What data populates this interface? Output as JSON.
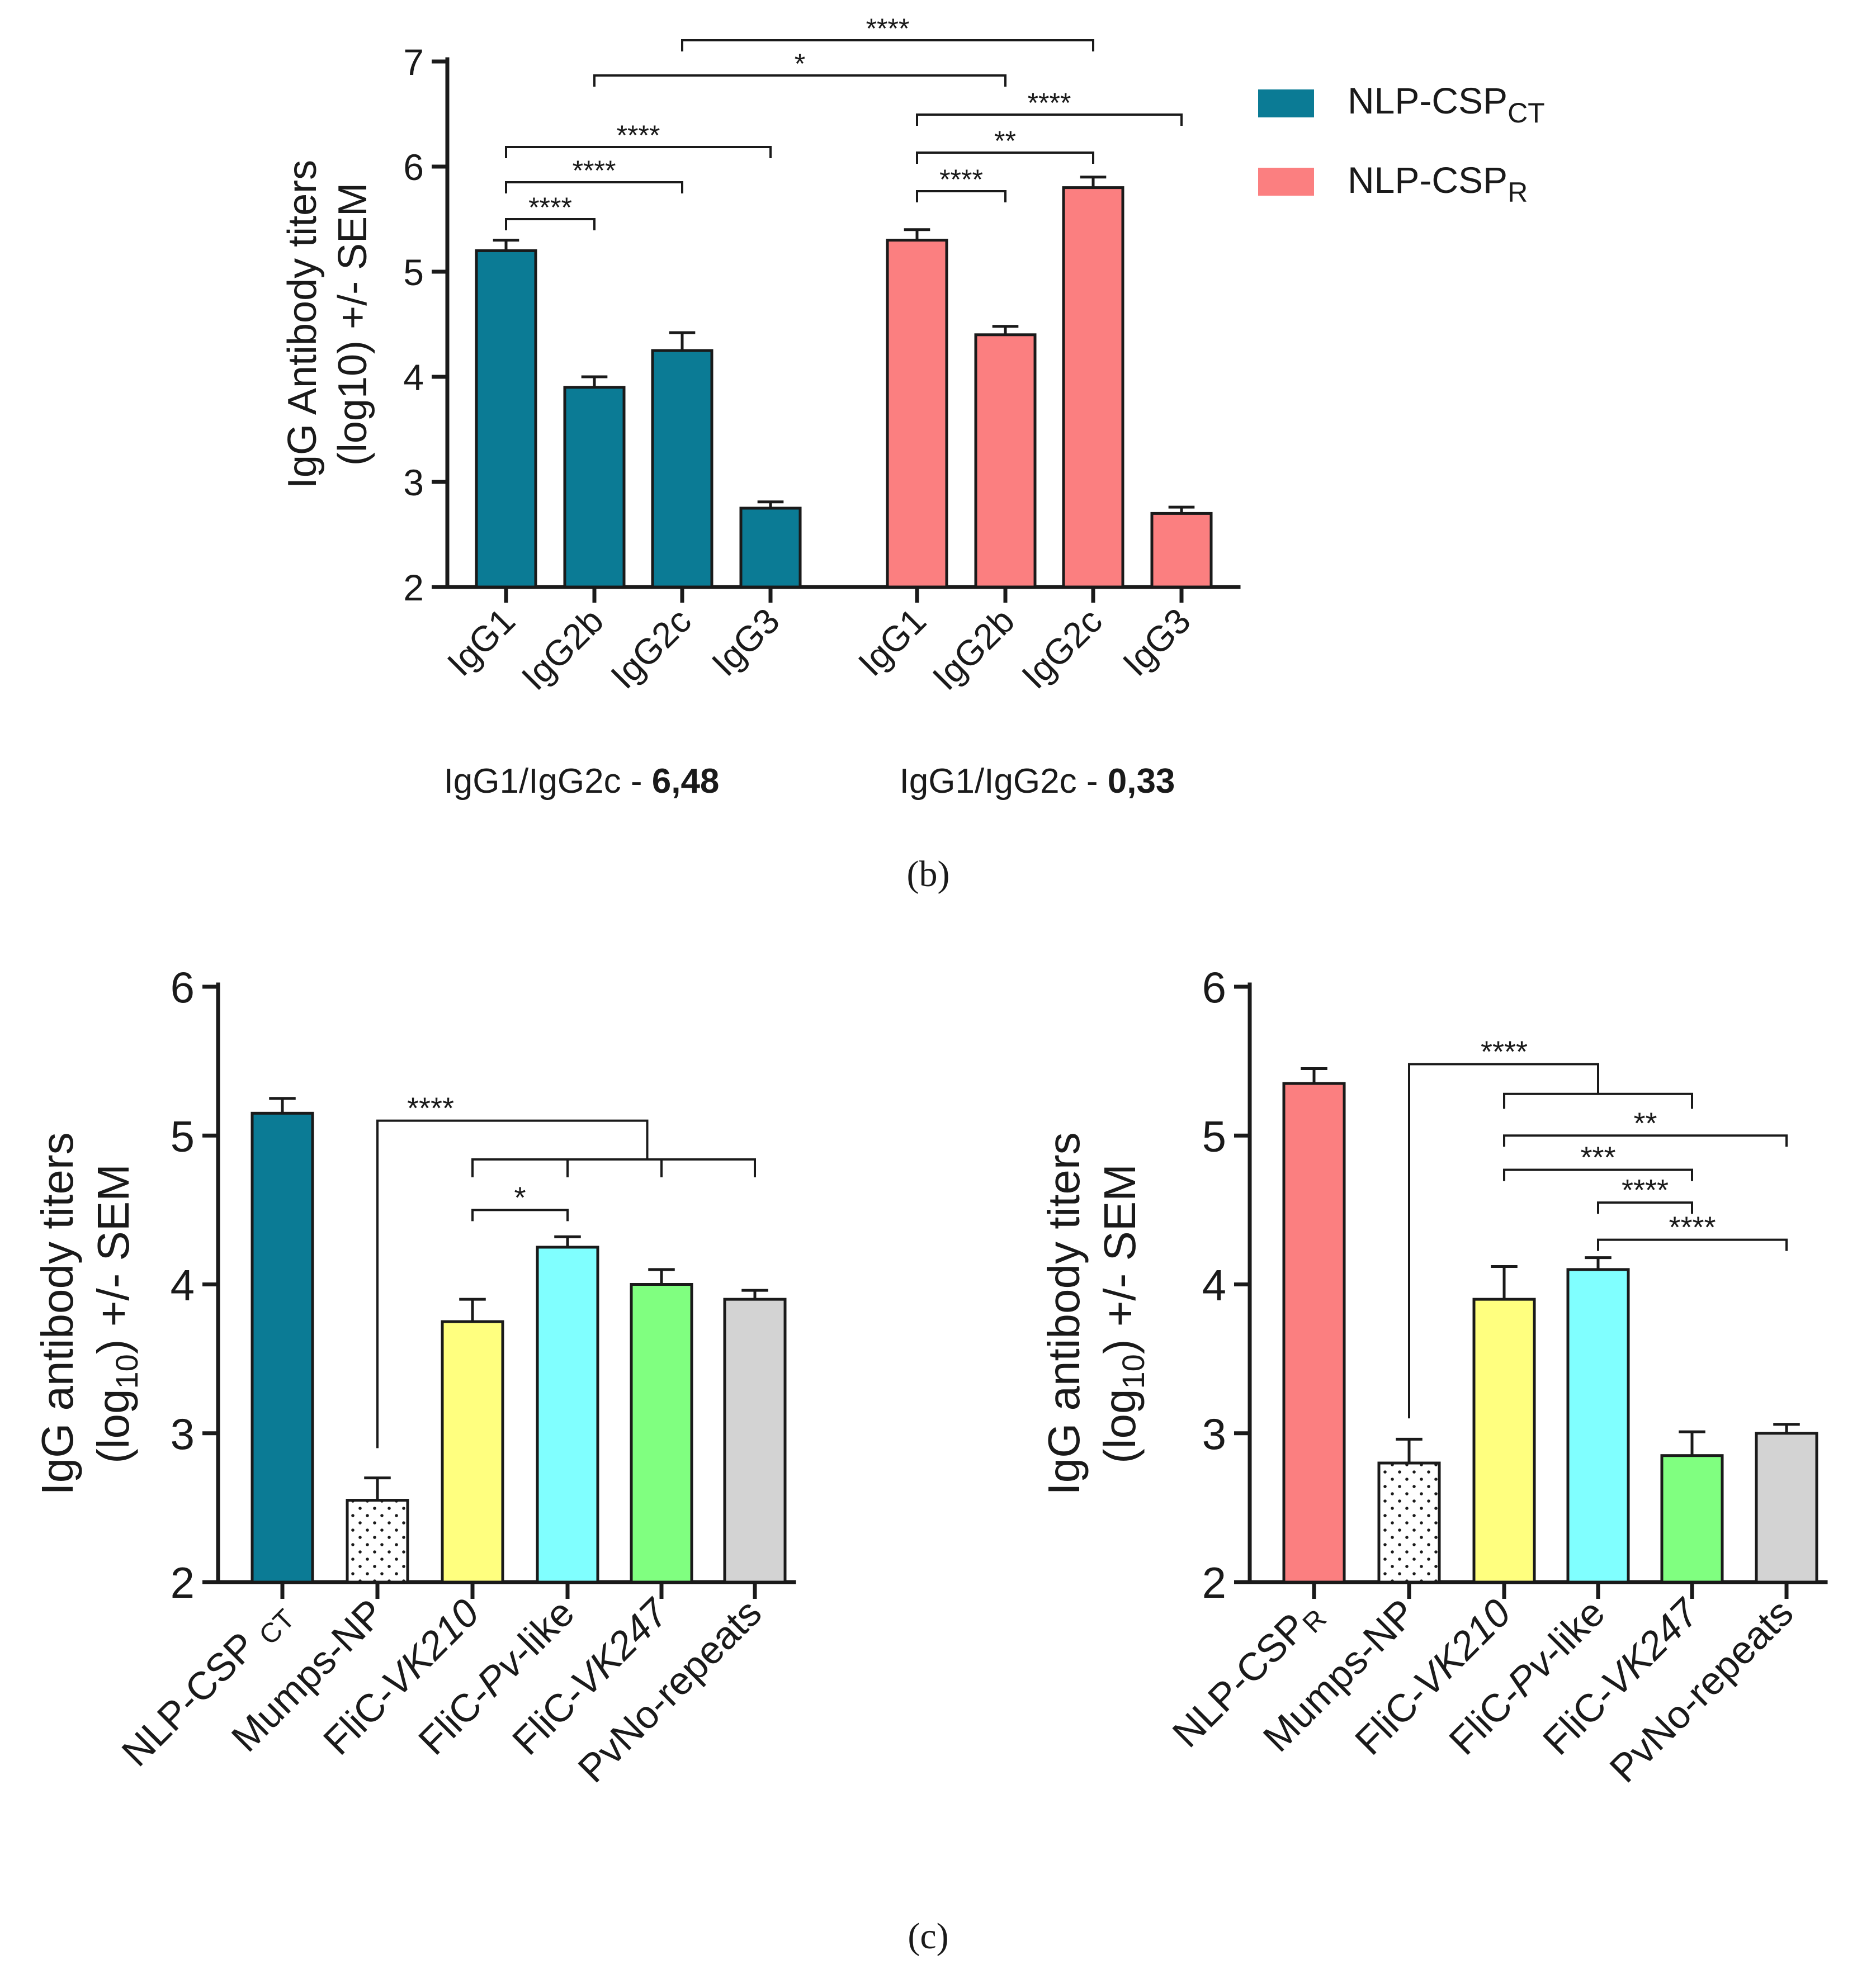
{
  "chart_data": [
    {
      "panel": "b",
      "type": "bar",
      "ylabel_line1": "IgG Antibody titers",
      "ylabel_line2": "(log10) +/- SEM",
      "ylim": [
        2,
        7
      ],
      "yticks": [
        2,
        3,
        4,
        5,
        6,
        7
      ],
      "series": [
        {
          "name": "NLP-CSP",
          "sub": "CT",
          "color": "#0b7b95",
          "categories": [
            "IgG1",
            "IgG2b",
            "IgG2c",
            "IgG3"
          ],
          "values": [
            5.2,
            3.9,
            4.25,
            2.75
          ],
          "errors": [
            0.1,
            0.1,
            0.17,
            0.06
          ]
        },
        {
          "name": "NLP-CSP",
          "sub": "R",
          "color": "#fb7f80",
          "categories": [
            "IgG1",
            "IgG2b",
            "IgG2c",
            "IgG3"
          ],
          "values": [
            5.3,
            4.4,
            5.8,
            2.7
          ],
          "errors": [
            0.1,
            0.08,
            0.1,
            0.06
          ]
        }
      ],
      "ratios": [
        {
          "label": "IgG1/IgG2c - ",
          "value": "6,48"
        },
        {
          "label": "IgG1/IgG2c - ",
          "value": "0,33"
        }
      ],
      "significance": [
        "****",
        "*",
        "****",
        "****",
        "****",
        "****",
        "**",
        "****"
      ]
    },
    {
      "panel": "c-left",
      "type": "bar",
      "ylabel_line1": "IgG antibody titers",
      "ylabel_line2_pre": "(log",
      "ylabel_line2_sub": "10",
      "ylabel_line2_post": ") +/- SEM",
      "ylim": [
        2,
        6
      ],
      "yticks": [
        2,
        3,
        4,
        5,
        6
      ],
      "categories": [
        {
          "pre": "NLP-CSP ",
          "ital": "",
          "post": "",
          "sub": "CT"
        },
        {
          "pre": "Mumps-NP",
          "ital": "",
          "post": "",
          "sub": ""
        },
        {
          "pre": "FliC-",
          "ital": "VK210",
          "post": "",
          "sub": ""
        },
        {
          "pre": "FliC-",
          "ital": "Pv",
          "post": "-like",
          "sub": ""
        },
        {
          "pre": "FliC-",
          "ital": "VK247",
          "post": "",
          "sub": ""
        },
        {
          "pre": "PvNo-repeats",
          "ital": "",
          "post": "",
          "sub": ""
        }
      ],
      "values": [
        5.15,
        2.55,
        3.75,
        4.25,
        4.0,
        3.9
      ],
      "errors": [
        0.1,
        0.15,
        0.15,
        0.07,
        0.1,
        0.06
      ],
      "colors": [
        "#0b7b95",
        "#ffffff",
        "#ffff7f",
        "#80ffff",
        "#80ff80",
        "#d3d3d3"
      ],
      "significance": [
        "****",
        "*"
      ]
    },
    {
      "panel": "c-right",
      "type": "bar",
      "ylabel_line1": "IgG antibody titers",
      "ylabel_line2_pre": "(log",
      "ylabel_line2_sub": "10",
      "ylabel_line2_post": ") +/- SEM",
      "ylim": [
        2,
        6
      ],
      "yticks": [
        2,
        3,
        4,
        5,
        6
      ],
      "categories": [
        {
          "pre": "NLP-CSP",
          "ital": "",
          "post": "",
          "sub": "R"
        },
        {
          "pre": "Mumps-NP",
          "ital": "",
          "post": "",
          "sub": ""
        },
        {
          "pre": "FliC-",
          "ital": "VK210",
          "post": "",
          "sub": ""
        },
        {
          "pre": "FliC-",
          "ital": "Pv",
          "post": "-like",
          "sub": ""
        },
        {
          "pre": "FliC-",
          "ital": "VK247",
          "post": "",
          "sub": ""
        },
        {
          "pre": "PvNo-repeats",
          "ital": "",
          "post": "",
          "sub": ""
        }
      ],
      "values": [
        5.35,
        2.8,
        3.9,
        4.1,
        2.85,
        3.0
      ],
      "errors": [
        0.1,
        0.16,
        0.22,
        0.08,
        0.16,
        0.06
      ],
      "colors": [
        "#fb7f80",
        "#ffffff",
        "#ffff7f",
        "#80ffff",
        "#80ff80",
        "#d3d3d3"
      ],
      "significance": [
        "****",
        "**",
        "***",
        "****",
        "****"
      ]
    }
  ],
  "captions": {
    "b": "(b)",
    "c": "(c)"
  }
}
